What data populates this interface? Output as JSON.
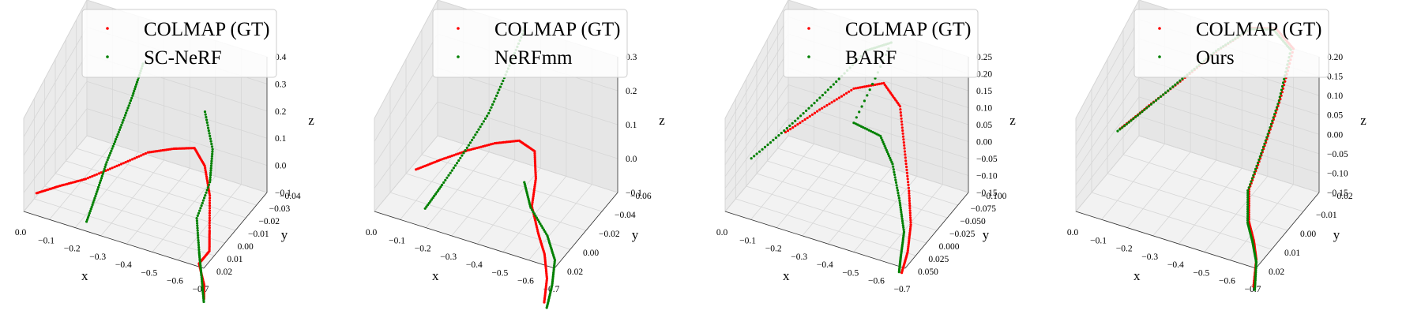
{
  "colors": {
    "gt": "#ff0000",
    "method": "#008000"
  },
  "chart_data": [
    {
      "type": "scatter3d",
      "legend": [
        "COLMAP (GT)",
        "SC-NeRF"
      ],
      "xlabel": "x",
      "ylabel": "y",
      "zlabel": "z",
      "xticks": [
        "0.0",
        "−0.1",
        "−0.2",
        "−0.3",
        "−0.4",
        "−0.5",
        "−0.6",
        "−0.7"
      ],
      "yticks": [
        "−0.04",
        "−0.03",
        "−0.02",
        "−0.01",
        "0.00",
        "0.01",
        "0.02"
      ],
      "zticks": [
        "0.4",
        "0.3",
        "0.2",
        "0.1",
        "0.0",
        "−0.1"
      ],
      "series": [
        {
          "name": "COLMAP (GT)",
          "color": "#ff0000",
          "points": [
            [
              -0.05,
              0.02,
              0.02
            ],
            [
              -0.12,
              0.015,
              0.05
            ],
            [
              -0.2,
              0.01,
              0.08
            ],
            [
              -0.28,
              0.0,
              0.1
            ],
            [
              -0.36,
              -0.01,
              0.12
            ],
            [
              -0.44,
              -0.015,
              0.13
            ],
            [
              -0.5,
              -0.02,
              0.12
            ],
            [
              -0.54,
              -0.02,
              0.06
            ],
            [
              -0.58,
              -0.015,
              -0.02
            ],
            [
              -0.62,
              -0.005,
              -0.1
            ],
            [
              -0.64,
              0.0,
              -0.16
            ],
            [
              -0.62,
              0.005,
              -0.2
            ],
            [
              -0.66,
              0.01,
              -0.26
            ],
            [
              -0.68,
              0.015,
              -0.3
            ]
          ]
        },
        {
          "name": "SC-NeRF",
          "color": "#008000",
          "points": [
            [
              -0.3,
              -0.02,
              0.4
            ],
            [
              -0.28,
              -0.015,
              0.3
            ],
            [
              -0.25,
              -0.01,
              0.18
            ],
            [
              -0.22,
              -0.005,
              0.06
            ],
            [
              -0.2,
              0.0,
              -0.06
            ],
            [
              -0.18,
              0.005,
              -0.18
            ],
            [
              -0.5,
              -0.03,
              0.2
            ],
            [
              -0.55,
              -0.025,
              0.1
            ],
            [
              -0.56,
              -0.02,
              0.0
            ],
            [
              -0.55,
              -0.01,
              -0.1
            ],
            [
              -0.6,
              0.0,
              -0.18
            ],
            [
              -0.65,
              0.01,
              -0.22
            ],
            [
              -0.7,
              0.02,
              -0.28
            ]
          ]
        }
      ]
    },
    {
      "type": "scatter3d",
      "legend": [
        "COLMAP (GT)",
        "NeRFmm"
      ],
      "xlabel": "x",
      "ylabel": "y",
      "zlabel": "z",
      "xticks": [
        "0.0",
        "−0.1",
        "−0.2",
        "−0.3",
        "−0.4",
        "−0.5",
        "−0.6",
        "−0.7"
      ],
      "yticks": [
        "−0.06",
        "−0.04",
        "−0.02",
        "0.00",
        "0.02"
      ],
      "zticks": [
        "0.3",
        "0.2",
        "0.1",
        "0.0",
        "−0.1"
      ],
      "series": [
        {
          "name": "COLMAP (GT)",
          "color": "#ff0000",
          "points": [
            [
              -0.1,
              0.0,
              0.02
            ],
            [
              -0.18,
              -0.005,
              0.06
            ],
            [
              -0.27,
              -0.01,
              0.1
            ],
            [
              -0.36,
              -0.015,
              0.13
            ],
            [
              -0.44,
              -0.02,
              0.14
            ],
            [
              -0.5,
              -0.02,
              0.12
            ],
            [
              -0.52,
              -0.015,
              0.05
            ],
            [
              -0.52,
              -0.01,
              -0.03
            ],
            [
              -0.56,
              -0.005,
              -0.1
            ],
            [
              -0.6,
              0.0,
              -0.15
            ],
            [
              -0.64,
              0.01,
              -0.2
            ],
            [
              -0.66,
              0.02,
              -0.26
            ]
          ]
        },
        {
          "name": "NeRFmm",
          "color": "#008000",
          "points": [
            [
              -0.34,
              -0.06,
              0.3
            ],
            [
              -0.3,
              -0.05,
              0.2
            ],
            [
              -0.26,
              -0.04,
              0.1
            ],
            [
              -0.2,
              -0.03,
              0.0
            ],
            [
              -0.14,
              -0.02,
              -0.1
            ],
            [
              -0.1,
              -0.01,
              -0.17
            ],
            [
              -0.46,
              -0.02,
              0.0
            ],
            [
              -0.5,
              -0.015,
              -0.06
            ],
            [
              -0.58,
              -0.01,
              -0.12
            ],
            [
              -0.64,
              0.0,
              -0.16
            ],
            [
              -0.66,
              0.01,
              -0.22
            ],
            [
              -0.67,
              0.02,
              -0.28
            ]
          ]
        }
      ]
    },
    {
      "type": "scatter3d",
      "legend": [
        "COLMAP (GT)",
        "BARF"
      ],
      "xlabel": "x",
      "ylabel": "y",
      "zlabel": "z",
      "xticks": [
        "0.0",
        "−0.1",
        "−0.2",
        "−0.3",
        "−0.4",
        "−0.5",
        "−0.6",
        "−0.7"
      ],
      "yticks": [
        "−0.100",
        "−0.075",
        "−0.050",
        "−0.025",
        "0.000",
        "0.025",
        "0.050"
      ],
      "zticks": [
        "0.25",
        "0.20",
        "0.15",
        "0.10",
        "0.05",
        "0.00",
        "−0.05",
        "−0.10",
        "−0.15"
      ],
      "series": [
        {
          "name": "COLMAP (GT)",
          "color": "#ff0000",
          "points": [
            [
              -0.12,
              -0.02,
              0.04
            ],
            [
              -0.22,
              -0.04,
              0.1
            ],
            [
              -0.32,
              -0.06,
              0.15
            ],
            [
              -0.42,
              -0.07,
              0.17
            ],
            [
              -0.5,
              -0.06,
              0.14
            ],
            [
              -0.55,
              -0.04,
              0.06
            ],
            [
              -0.6,
              -0.02,
              -0.03
            ],
            [
              -0.64,
              0.0,
              -0.1
            ],
            [
              -0.66,
              0.02,
              -0.16
            ],
            [
              -0.67,
              0.04,
              -0.2
            ]
          ]
        },
        {
          "name": "BARF",
          "color": "#008000",
          "points": [
            [
              -0.02,
              0.0,
              -0.04
            ],
            [
              -0.12,
              -0.03,
              0.04
            ],
            [
              -0.22,
              -0.06,
              0.12
            ],
            [
              -0.32,
              -0.09,
              0.2
            ],
            [
              -0.4,
              -0.1,
              0.22
            ],
            [
              -0.32,
              -0.06,
              0.04
            ],
            [
              -0.44,
              -0.05,
              0.05
            ],
            [
              -0.52,
              -0.03,
              0.02
            ],
            [
              -0.58,
              -0.01,
              -0.05
            ],
            [
              -0.63,
              0.01,
              -0.11
            ],
            [
              -0.65,
              0.03,
              -0.16
            ],
            [
              -0.66,
              0.04,
              -0.2
            ]
          ]
        }
      ]
    },
    {
      "type": "scatter3d",
      "legend": [
        "COLMAP (GT)",
        "Ours"
      ],
      "xlabel": "x",
      "ylabel": "y",
      "zlabel": "z",
      "xticks": [
        "0.0",
        "−0.1",
        "−0.2",
        "−0.3",
        "−0.4",
        "−0.5",
        "−0.6",
        "−0.7"
      ],
      "yticks": [
        "−0.02",
        "−0.01",
        "0.00",
        "0.01",
        "0.02"
      ],
      "zticks": [
        "0.20",
        "0.15",
        "0.10",
        "0.05",
        "0.00",
        "−0.05",
        "−0.10",
        "−0.15"
      ],
      "series": [
        {
          "name": "COLMAP (GT)",
          "color": "#ff0000",
          "points": [
            [
              -0.05,
              0.0,
              0.0
            ],
            [
              -0.14,
              -0.005,
              0.06
            ],
            [
              -0.24,
              -0.01,
              0.12
            ],
            [
              -0.34,
              -0.015,
              0.18
            ],
            [
              -0.44,
              -0.02,
              0.22
            ],
            [
              -0.52,
              -0.022,
              0.22
            ],
            [
              -0.6,
              -0.02,
              0.2
            ],
            [
              -0.58,
              -0.015,
              0.1
            ],
            [
              -0.55,
              -0.01,
              0.0
            ],
            [
              -0.52,
              -0.005,
              -0.1
            ],
            [
              -0.55,
              0.0,
              -0.16
            ],
            [
              -0.6,
              0.005,
              -0.18
            ],
            [
              -0.64,
              0.01,
              -0.2
            ],
            [
              -0.66,
              0.015,
              -0.26
            ]
          ]
        },
        {
          "name": "Ours",
          "color": "#008000",
          "points": [
            [
              -0.04,
              0.0,
              -0.01
            ],
            [
              -0.13,
              -0.005,
              0.05
            ],
            [
              -0.23,
              -0.01,
              0.115
            ],
            [
              -0.33,
              -0.015,
              0.175
            ],
            [
              -0.43,
              -0.02,
              0.215
            ],
            [
              -0.51,
              -0.022,
              0.215
            ],
            [
              -0.59,
              -0.02,
              0.195
            ],
            [
              -0.575,
              -0.015,
              0.095
            ],
            [
              -0.545,
              -0.01,
              -0.005
            ],
            [
              -0.515,
              -0.005,
              -0.105
            ],
            [
              -0.545,
              0.0,
              -0.165
            ],
            [
              -0.595,
              0.005,
              -0.185
            ],
            [
              -0.64,
              0.01,
              -0.21
            ],
            [
              -0.665,
              0.015,
              -0.27
            ]
          ]
        }
      ]
    }
  ]
}
